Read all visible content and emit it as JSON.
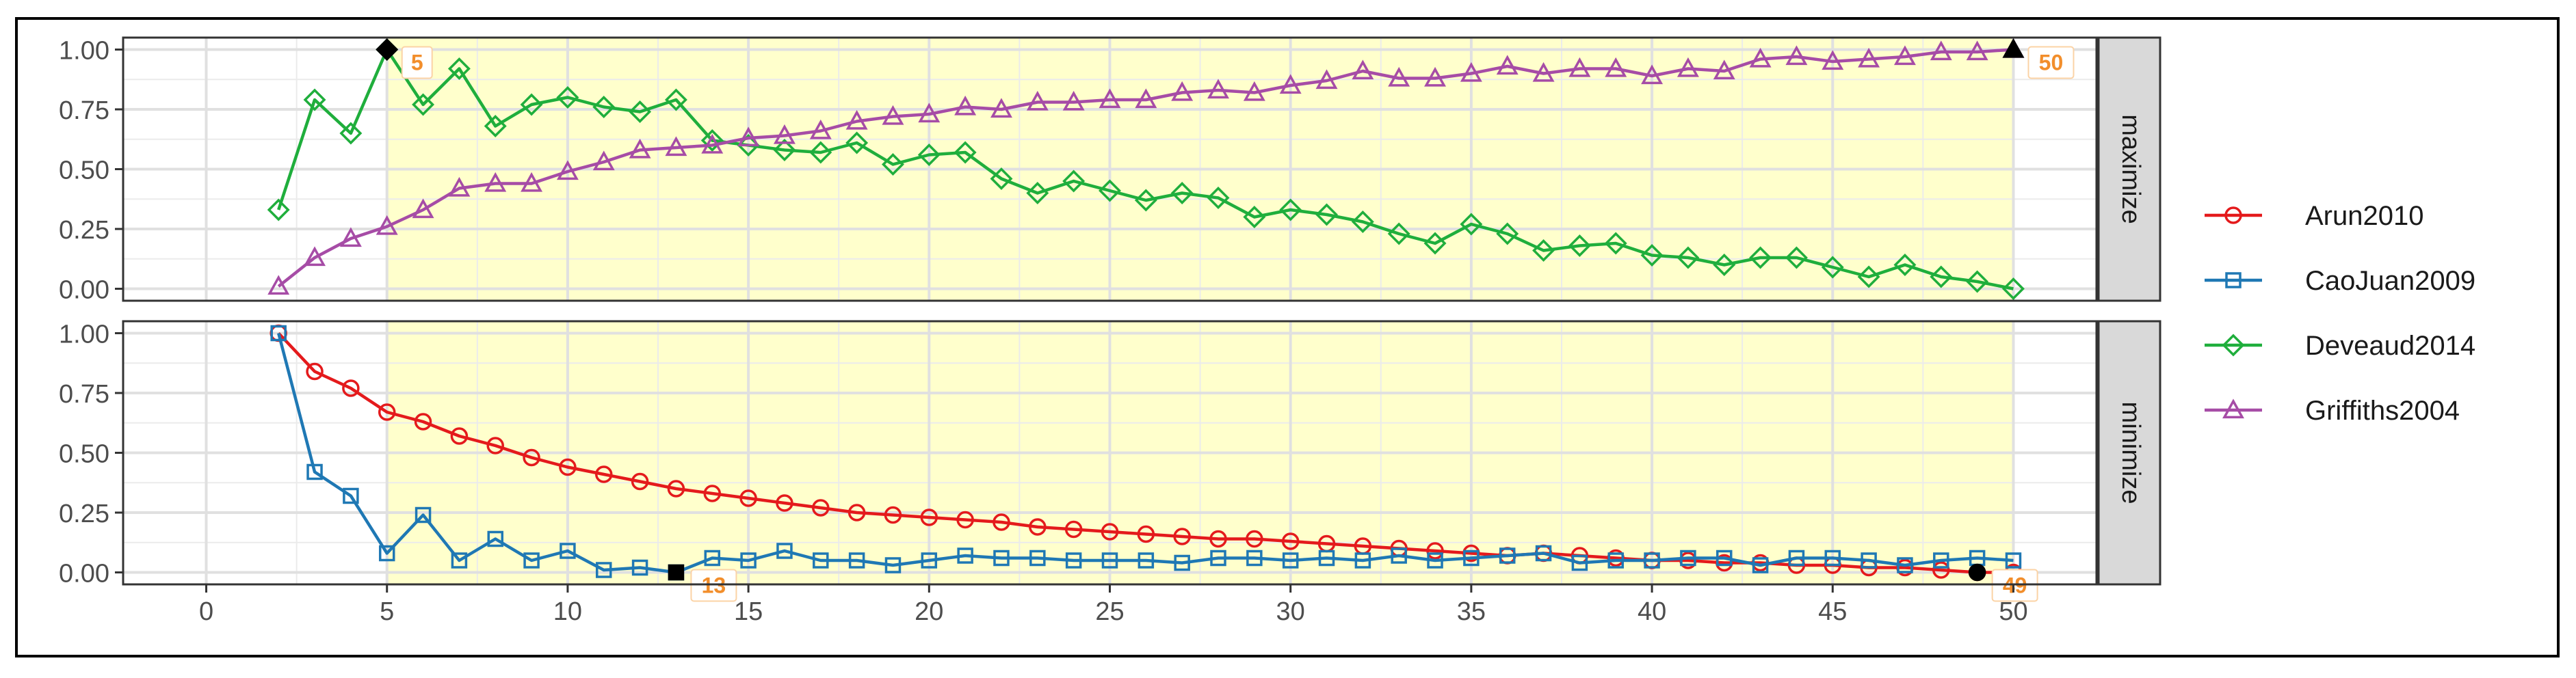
{
  "colors": {
    "Arun2010": "#e41a1c",
    "CaoJuan2009": "#1f78b4",
    "Deveaud2014": "#1fae3c",
    "Griffiths2004": "#a64ca6",
    "highlight_fill": "#ffffcc",
    "label_color": "#f28e2b",
    "strip_fill": "#d9d9d9"
  },
  "chart_data": {
    "type": "line",
    "facet_by": "direction",
    "x_ticks": [
      0,
      5,
      10,
      15,
      20,
      25,
      30,
      35,
      40,
      45,
      50
    ],
    "y_ticks": [
      "0.00",
      "0.25",
      "0.50",
      "0.75",
      "1.00"
    ],
    "xlim": [
      -2.3,
      52.3
    ],
    "ylim": [
      -0.05,
      1.05
    ],
    "highlight_range": [
      5,
      50
    ],
    "legend": {
      "position": "right",
      "entries": [
        {
          "name": "Arun2010",
          "marker": "circle"
        },
        {
          "name": "CaoJuan2009",
          "marker": "square"
        },
        {
          "name": "Deveaud2014",
          "marker": "diamond"
        },
        {
          "name": "Griffiths2004",
          "marker": "triangle"
        }
      ]
    },
    "panels": [
      {
        "strip": "maximize",
        "series": [
          {
            "name": "Deveaud2014",
            "marker": "diamond",
            "x": [
              2,
              3,
              4,
              5,
              6,
              7,
              8,
              9,
              10,
              11,
              12,
              13,
              14,
              15,
              16,
              17,
              18,
              19,
              20,
              21,
              22,
              23,
              24,
              25,
              26,
              27,
              28,
              29,
              30,
              31,
              32,
              33,
              34,
              35,
              36,
              37,
              38,
              39,
              40,
              41,
              42,
              43,
              44,
              45,
              46,
              47,
              48,
              49,
              50
            ],
            "y": [
              0.33,
              0.79,
              0.65,
              1.0,
              0.77,
              0.92,
              0.68,
              0.77,
              0.8,
              0.76,
              0.74,
              0.79,
              0.62,
              0.6,
              0.58,
              0.57,
              0.61,
              0.52,
              0.56,
              0.57,
              0.46,
              0.4,
              0.45,
              0.41,
              0.37,
              0.4,
              0.38,
              0.3,
              0.33,
              0.31,
              0.28,
              0.23,
              0.19,
              0.27,
              0.23,
              0.16,
              0.18,
              0.19,
              0.14,
              0.13,
              0.1,
              0.13,
              0.13,
              0.09,
              0.05,
              0.1,
              0.05,
              0.03,
              0.0
            ]
          },
          {
            "name": "Griffiths2004",
            "marker": "triangle",
            "x": [
              2,
              3,
              4,
              5,
              6,
              7,
              8,
              9,
              10,
              11,
              12,
              13,
              14,
              15,
              16,
              17,
              18,
              19,
              20,
              21,
              22,
              23,
              24,
              25,
              26,
              27,
              28,
              29,
              30,
              31,
              32,
              33,
              34,
              35,
              36,
              37,
              38,
              39,
              40,
              41,
              42,
              43,
              44,
              45,
              46,
              47,
              48,
              49,
              50
            ],
            "y": [
              0.01,
              0.13,
              0.21,
              0.26,
              0.33,
              0.42,
              0.44,
              0.44,
              0.49,
              0.53,
              0.58,
              0.59,
              0.6,
              0.63,
              0.64,
              0.66,
              0.7,
              0.72,
              0.73,
              0.76,
              0.75,
              0.78,
              0.78,
              0.79,
              0.79,
              0.82,
              0.83,
              0.82,
              0.85,
              0.87,
              0.91,
              0.88,
              0.88,
              0.9,
              0.93,
              0.9,
              0.92,
              0.92,
              0.89,
              0.92,
              0.91,
              0.96,
              0.97,
              0.95,
              0.96,
              0.97,
              0.99,
              0.99,
              1.0
            ]
          }
        ],
        "best_points": [
          {
            "x": 5,
            "y": 1.0,
            "series": "Deveaud2014",
            "label": "5"
          },
          {
            "x": 50,
            "y": 1.0,
            "series": "Griffiths2004",
            "label": "50"
          }
        ]
      },
      {
        "strip": "minimize",
        "series": [
          {
            "name": "Arun2010",
            "marker": "circle",
            "x": [
              2,
              3,
              4,
              5,
              6,
              7,
              8,
              9,
              10,
              11,
              12,
              13,
              14,
              15,
              16,
              17,
              18,
              19,
              20,
              21,
              22,
              23,
              24,
              25,
              26,
              27,
              28,
              29,
              30,
              31,
              32,
              33,
              34,
              35,
              36,
              37,
              38,
              39,
              40,
              41,
              42,
              43,
              44,
              45,
              46,
              47,
              48,
              49,
              50
            ],
            "y": [
              1.0,
              0.84,
              0.77,
              0.67,
              0.63,
              0.57,
              0.53,
              0.48,
              0.44,
              0.41,
              0.38,
              0.35,
              0.33,
              0.31,
              0.29,
              0.27,
              0.25,
              0.24,
              0.23,
              0.22,
              0.21,
              0.19,
              0.18,
              0.17,
              0.16,
              0.15,
              0.14,
              0.14,
              0.13,
              0.12,
              0.11,
              0.1,
              0.09,
              0.08,
              0.07,
              0.08,
              0.07,
              0.06,
              0.05,
              0.05,
              0.04,
              0.04,
              0.03,
              0.03,
              0.02,
              0.02,
              0.01,
              0.0,
              0.0
            ]
          },
          {
            "name": "CaoJuan2009",
            "marker": "square",
            "x": [
              2,
              3,
              4,
              5,
              6,
              7,
              8,
              9,
              10,
              11,
              12,
              13,
              14,
              15,
              16,
              17,
              18,
              19,
              20,
              21,
              22,
              23,
              24,
              25,
              26,
              27,
              28,
              29,
              30,
              31,
              32,
              33,
              34,
              35,
              36,
              37,
              38,
              39,
              40,
              41,
              42,
              43,
              44,
              45,
              46,
              47,
              48,
              49,
              50
            ],
            "y": [
              1.0,
              0.42,
              0.32,
              0.08,
              0.24,
              0.05,
              0.14,
              0.05,
              0.09,
              0.01,
              0.02,
              0.0,
              0.06,
              0.05,
              0.09,
              0.05,
              0.05,
              0.03,
              0.05,
              0.07,
              0.06,
              0.06,
              0.05,
              0.05,
              0.05,
              0.04,
              0.06,
              0.06,
              0.05,
              0.06,
              0.05,
              0.07,
              0.05,
              0.06,
              0.07,
              0.08,
              0.04,
              0.05,
              0.05,
              0.06,
              0.06,
              0.03,
              0.06,
              0.06,
              0.05,
              0.03,
              0.05,
              0.06,
              0.05
            ]
          }
        ],
        "best_points": [
          {
            "x": 13,
            "y": 0.0,
            "series": "CaoJuan2009",
            "label": "13"
          },
          {
            "x": 49,
            "y": 0.0,
            "series": "Arun2010",
            "label": "49"
          }
        ]
      }
    ]
  }
}
